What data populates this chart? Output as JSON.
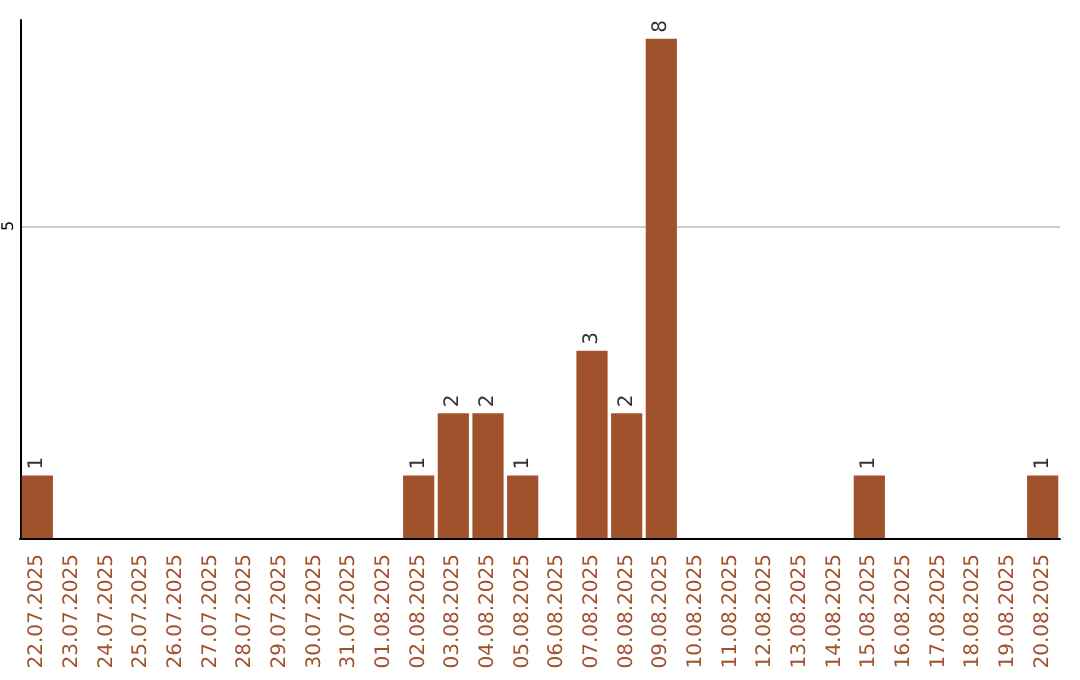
{
  "chart_data": {
    "type": "bar",
    "categories": [
      "22.07.2025",
      "23.07.2025",
      "24.07.2025",
      "25.07.2025",
      "26.07.2025",
      "27.07.2025",
      "28.07.2025",
      "29.07.2025",
      "30.07.2025",
      "31.07.2025",
      "01.08.2025",
      "02.08.2025",
      "03.08.2025",
      "04.08.2025",
      "05.08.2025",
      "06.08.2025",
      "07.08.2025",
      "08.08.2025",
      "09.08.2025",
      "10.08.2025",
      "11.08.2025",
      "12.08.2025",
      "13.08.2025",
      "14.08.2025",
      "15.08.2025",
      "16.08.2025",
      "17.08.2025",
      "18.08.2025",
      "19.08.2025",
      "20.08.2025"
    ],
    "values": [
      1,
      0,
      0,
      0,
      0,
      0,
      0,
      0,
      0,
      0,
      0,
      1,
      2,
      2,
      1,
      0,
      3,
      2,
      8,
      0,
      0,
      0,
      0,
      0,
      1,
      0,
      0,
      0,
      0,
      1
    ],
    "value_labels": [
      "1",
      null,
      null,
      null,
      null,
      null,
      null,
      null,
      null,
      null,
      null,
      "1",
      "2",
      "2",
      "1",
      null,
      "3",
      "2",
      "8",
      null,
      null,
      null,
      null,
      null,
      "1",
      null,
      null,
      null,
      null,
      "1"
    ],
    "color": "#a0522d",
    "ylim": [
      0,
      8.3
    ],
    "yticks": [
      5
    ],
    "grid": "y"
  }
}
